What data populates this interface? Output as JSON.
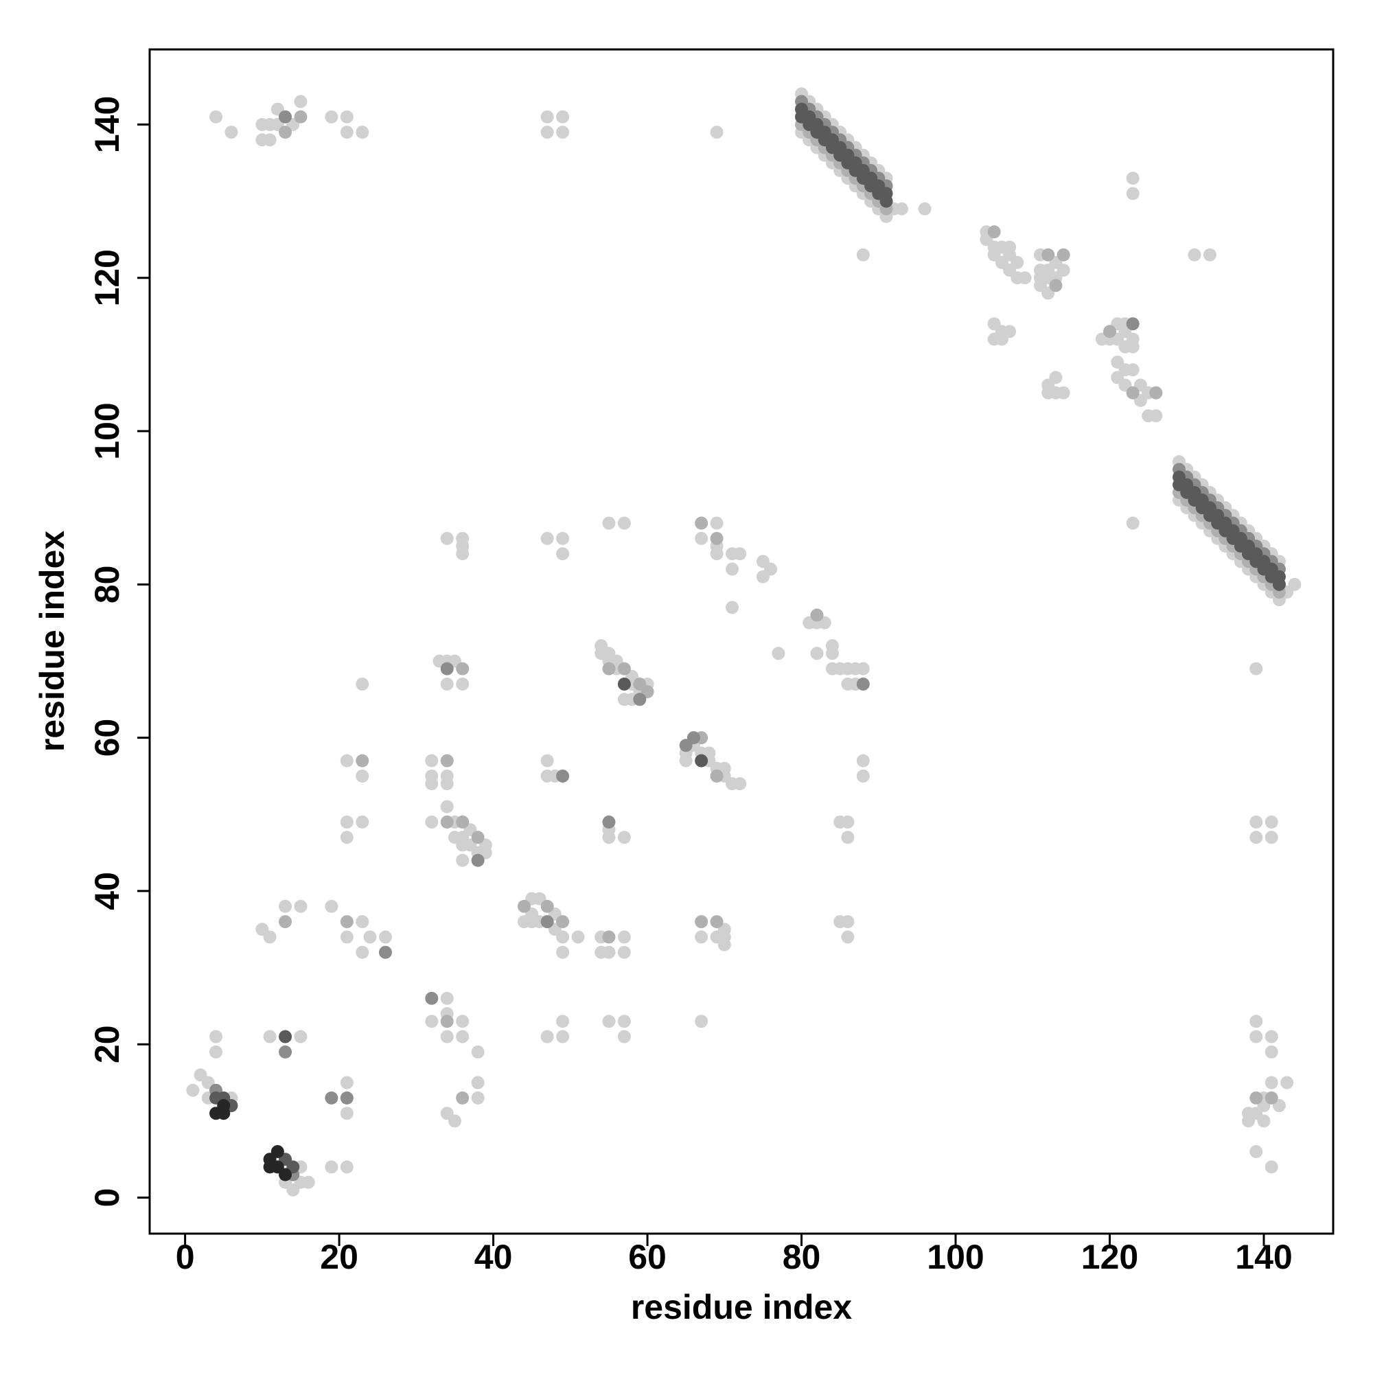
{
  "chart_data": {
    "type": "scatter",
    "xlabel": "residue index",
    "ylabel": "residue index",
    "xlim": [
      -4.6,
      149
    ],
    "ylim": [
      -4.7,
      149.8
    ],
    "xticks": [
      0,
      20,
      40,
      60,
      80,
      100,
      120,
      140
    ],
    "yticks": [
      0,
      20,
      40,
      60,
      80,
      100,
      120,
      140
    ],
    "series": [
      {
        "color": "#d0d0d0",
        "x": [
          80,
          81,
          82,
          83,
          84,
          85,
          86,
          87,
          88,
          89,
          90,
          91,
          80,
          81,
          82,
          83,
          84,
          85,
          86,
          87,
          88,
          89,
          90,
          91,
          129,
          130,
          131,
          132,
          133,
          134,
          135,
          136,
          137,
          138,
          139,
          140,
          141,
          142,
          129,
          130,
          131,
          132,
          133,
          134,
          135,
          136,
          137,
          138,
          139,
          140,
          141,
          142,
          4,
          6,
          10,
          10,
          11,
          11,
          12,
          12,
          14,
          15,
          19,
          21,
          21,
          23,
          47,
          47,
          49,
          49,
          69,
          88,
          104,
          104,
          105,
          105,
          106,
          106,
          107,
          107,
          107,
          108,
          108,
          109,
          105,
          105,
          106,
          106,
          107,
          111,
          111,
          111,
          111,
          112,
          112,
          112,
          113,
          113,
          114,
          112,
          112,
          113,
          113,
          114,
          119,
          120,
          121,
          121,
          122,
          122,
          122,
          123,
          123,
          121,
          121,
          122,
          122,
          123,
          124,
          124,
          125,
          125,
          126,
          123,
          123,
          123,
          131,
          133,
          139,
          139,
          139,
          141,
          141,
          139,
          139,
          141,
          141,
          138,
          138,
          139,
          140,
          140,
          140,
          141,
          142,
          143,
          139,
          141,
          1,
          2,
          3,
          3,
          6,
          4,
          4,
          13,
          14,
          15,
          15,
          16,
          11,
          15,
          21,
          21,
          19,
          21,
          10,
          11,
          13,
          15,
          19,
          21,
          23,
          23,
          24,
          26,
          21,
          23,
          21,
          21,
          23,
          23,
          32,
          32,
          32,
          34,
          34,
          32,
          34,
          35,
          35,
          36,
          36,
          36,
          37,
          37,
          38,
          39,
          39,
          33,
          34,
          34,
          35,
          36,
          34,
          36,
          36,
          36,
          32,
          34,
          34,
          34,
          36,
          36,
          38,
          38,
          38,
          34,
          35,
          44,
          45,
          45,
          45,
          46,
          46,
          48,
          48,
          49,
          49,
          51,
          47,
          49,
          49,
          47,
          47,
          48,
          47,
          49,
          49,
          54,
          54,
          55,
          55,
          56,
          56,
          57,
          58,
          58,
          58,
          59,
          60,
          55,
          57,
          55,
          55,
          57,
          54,
          54,
          55,
          57,
          57,
          55,
          57,
          57,
          65,
          65,
          66,
          67,
          68,
          68,
          69,
          70,
          70,
          71,
          72,
          67,
          69,
          69,
          69,
          71,
          71,
          72,
          75,
          75,
          76,
          71,
          77,
          67,
          69,
          70,
          70,
          70,
          67,
          81,
          82,
          83,
          82,
          84,
          84,
          84,
          85,
          86,
          86,
          87,
          87,
          88,
          88,
          88,
          85,
          86,
          86,
          85,
          86,
          86,
          96,
          92,
          93,
          143,
          144,
          129
        ],
        "y": [
          139,
          138,
          137,
          136,
          135,
          134,
          133,
          132,
          131,
          130,
          129,
          128,
          144,
          143,
          142,
          141,
          140,
          139,
          138,
          137,
          136,
          135,
          134,
          133,
          91,
          90,
          89,
          88,
          87,
          86,
          85,
          84,
          83,
          82,
          81,
          80,
          79,
          78,
          96,
          95,
          94,
          93,
          92,
          91,
          90,
          89,
          88,
          87,
          86,
          85,
          84,
          83,
          141,
          139,
          140,
          138,
          140,
          138,
          140,
          142,
          140,
          143,
          141,
          141,
          139,
          139,
          141,
          139,
          141,
          139,
          139,
          123,
          125,
          126,
          123,
          124,
          122,
          124,
          121,
          123,
          124,
          120,
          122,
          120,
          114,
          112,
          113,
          112,
          113,
          123,
          121,
          120,
          119,
          121,
          120,
          118,
          122,
          120,
          121,
          106,
          105,
          107,
          105,
          105,
          112,
          112,
          114,
          112,
          114,
          113,
          111,
          112,
          111,
          109,
          107,
          108,
          106,
          108,
          106,
          104,
          105,
          102,
          102,
          133,
          131,
          88,
          123,
          123,
          69,
          49,
          47,
          49,
          47,
          23,
          21,
          21,
          19,
          11,
          10,
          11,
          12,
          10,
          13,
          15,
          12,
          15,
          6,
          4,
          14,
          16,
          15,
          13,
          13,
          21,
          19,
          2,
          1,
          4,
          2,
          2,
          21,
          21,
          15,
          11,
          4,
          4,
          35,
          34,
          38,
          38,
          38,
          34,
          36,
          32,
          34,
          34,
          57,
          55,
          49,
          47,
          49,
          67,
          57,
          55,
          54,
          55,
          54,
          49,
          51,
          49,
          47,
          47,
          46,
          44,
          48,
          46,
          45,
          46,
          45,
          70,
          70,
          67,
          70,
          67,
          86,
          86,
          85,
          84,
          23,
          26,
          24,
          21,
          23,
          21,
          19,
          15,
          13,
          11,
          10,
          36,
          39,
          37,
          36,
          39,
          36,
          37,
          35,
          34,
          32,
          34,
          21,
          23,
          21,
          57,
          55,
          55,
          86,
          86,
          84,
          72,
          71,
          71,
          70,
          70,
          69,
          65,
          68,
          67,
          65,
          66,
          67,
          88,
          88,
          48,
          47,
          47,
          34,
          32,
          32,
          34,
          32,
          23,
          23,
          21,
          58,
          57,
          59,
          58,
          58,
          57,
          56,
          56,
          55,
          54,
          54,
          86,
          88,
          85,
          84,
          84,
          82,
          84,
          83,
          81,
          82,
          77,
          71,
          34,
          34,
          35,
          34,
          33,
          23,
          75,
          75,
          75,
          71,
          72,
          71,
          69,
          69,
          69,
          67,
          69,
          67,
          69,
          57,
          55,
          49,
          49,
          47,
          36,
          36,
          34,
          129,
          129,
          129,
          79,
          80,
          96
        ]
      },
      {
        "color": "#b0b0b0",
        "x": [
          80,
          81,
          82,
          83,
          84,
          85,
          86,
          87,
          88,
          89,
          90,
          91,
          129,
          130,
          131,
          132,
          133,
          134,
          135,
          136,
          137,
          138,
          139,
          140,
          141,
          142,
          13,
          15,
          105,
          112,
          113,
          114,
          120,
          123,
          126,
          139,
          141,
          13,
          21,
          23,
          34,
          34,
          36,
          38,
          36,
          34,
          36,
          44,
          47,
          49,
          55,
          57,
          59,
          60,
          55,
          67,
          69,
          67,
          69,
          67,
          69,
          82
        ],
        "y": [
          140,
          139,
          138,
          137,
          136,
          135,
          134,
          133,
          132,
          131,
          130,
          129,
          92,
          91,
          90,
          89,
          88,
          87,
          86,
          85,
          84,
          83,
          82,
          81,
          80,
          79,
          139,
          141,
          126,
          123,
          119,
          123,
          113,
          105,
          105,
          13,
          13,
          36,
          36,
          57,
          57,
          49,
          49,
          47,
          69,
          23,
          13,
          38,
          38,
          36,
          69,
          69,
          67,
          66,
          34,
          60,
          55,
          88,
          86,
          36,
          36,
          76
        ]
      },
      {
        "color": "#8c8c8c",
        "x": [
          80,
          81,
          82,
          83,
          84,
          85,
          86,
          87,
          88,
          89,
          90,
          91,
          129,
          130,
          131,
          132,
          133,
          134,
          135,
          136,
          137,
          138,
          139,
          140,
          141,
          142,
          123,
          4,
          13,
          19,
          21,
          26,
          38,
          34,
          32,
          47,
          49,
          59,
          55,
          65,
          66,
          88,
          13,
          14
        ],
        "y": [
          143,
          142,
          141,
          140,
          139,
          138,
          137,
          136,
          135,
          134,
          133,
          132,
          95,
          94,
          93,
          92,
          91,
          90,
          89,
          88,
          87,
          86,
          85,
          84,
          83,
          82,
          114,
          14,
          19,
          13,
          13,
          32,
          44,
          69,
          26,
          36,
          55,
          65,
          49,
          59,
          60,
          67,
          141,
          3
        ]
      },
      {
        "color": "#5a5a5a",
        "x": [
          80,
          81,
          82,
          83,
          84,
          85,
          86,
          87,
          88,
          89,
          90,
          91,
          80,
          81,
          82,
          83,
          84,
          85,
          86,
          87,
          88,
          89,
          90,
          91,
          129,
          130,
          131,
          132,
          133,
          134,
          135,
          136,
          137,
          138,
          139,
          140,
          141,
          142,
          129,
          130,
          131,
          132,
          133,
          134,
          135,
          136,
          137,
          138,
          139,
          140,
          141,
          142,
          4,
          5,
          6,
          13,
          14,
          13,
          57,
          67
        ],
        "y": [
          141,
          140,
          139,
          138,
          137,
          136,
          135,
          134,
          133,
          132,
          131,
          130,
          142,
          141,
          140,
          139,
          138,
          137,
          136,
          135,
          134,
          133,
          132,
          131,
          93,
          92,
          91,
          90,
          89,
          88,
          87,
          86,
          85,
          84,
          83,
          82,
          81,
          80,
          94,
          93,
          92,
          91,
          90,
          89,
          88,
          87,
          86,
          85,
          84,
          83,
          82,
          81,
          13,
          13,
          12,
          5,
          4,
          21,
          67,
          57
        ]
      },
      {
        "color": "#262626",
        "x": [
          4,
          5,
          5,
          11,
          11,
          12,
          12,
          13
        ],
        "y": [
          11,
          11,
          12,
          5,
          4,
          6,
          4,
          3
        ]
      }
    ]
  }
}
